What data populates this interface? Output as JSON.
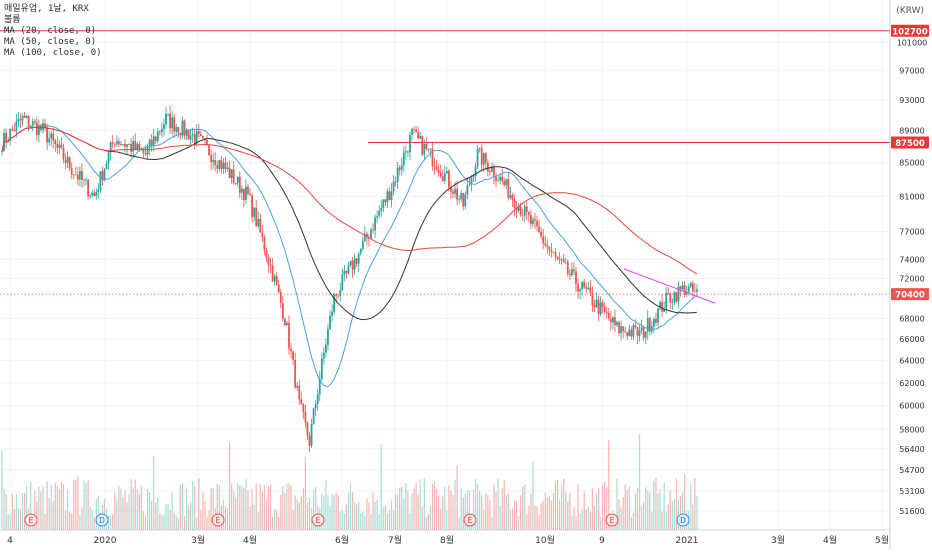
{
  "header": {
    "title": "매일유업, 1날, KRX",
    "subtitle": "볼륨",
    "indicators": [
      "MA (20, close, 0)",
      "MA (50, close, 0)",
      "MA (100, close, 0)"
    ],
    "currency": "(KRW)"
  },
  "chart_data": {
    "type": "candlestick",
    "symbol": "매일유업",
    "interval": "1날",
    "exchange": "KRX",
    "y_axis": {
      "ticks": [
        101000,
        97000,
        93000,
        89000,
        85000,
        81000,
        77000,
        74000,
        72000,
        68000,
        66000,
        64000,
        62000,
        60000,
        58000,
        56400,
        54700,
        53100,
        51600
      ],
      "range": [
        50200,
        104300
      ],
      "scale": "log"
    },
    "x_axis": {
      "ticks": [
        "4",
        "2020",
        "3월",
        "4월",
        "6월",
        "7월",
        "8월",
        "10월",
        "9",
        "2021",
        "3월",
        "4월",
        "5월"
      ]
    },
    "price_labels": [
      {
        "value": 102700,
        "color": "#e53935",
        "style": "solid"
      },
      {
        "value": 87500,
        "color": "#e53935",
        "style": "solid"
      },
      {
        "value": 70400,
        "color": "#ef5350",
        "style": "dotted",
        "current": true
      }
    ],
    "series": [
      {
        "name": "MA (20, close, 0)",
        "color": "#4aa3df"
      },
      {
        "name": "MA (50, close, 0)",
        "color": "#333333"
      },
      {
        "name": "MA (100, close, 0)",
        "color": "#e8483b"
      }
    ],
    "trendline": {
      "from": 73000,
      "to": 69500,
      "color": "#e040fb"
    },
    "events": [
      {
        "label": "E",
        "kind": "earnings"
      },
      {
        "label": "D",
        "kind": "dividend"
      },
      {
        "label": "E",
        "kind": "earnings"
      },
      {
        "label": "E",
        "kind": "earnings"
      },
      {
        "label": "E",
        "kind": "earnings"
      },
      {
        "label": "E",
        "kind": "earnings"
      },
      {
        "label": "D",
        "kind": "dividend"
      }
    ],
    "colors": {
      "up": "#26a69a",
      "down": "#ef5350",
      "grid": "#f0f3fa"
    }
  }
}
